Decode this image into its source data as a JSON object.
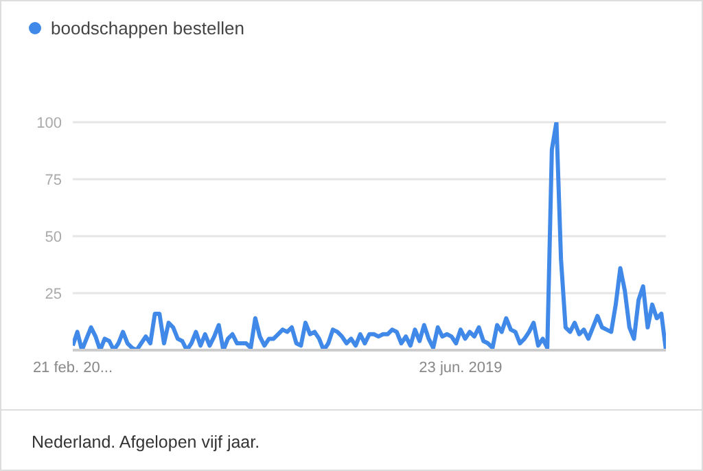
{
  "chart_data": {
    "type": "line",
    "categories": [
      "21 feb. 20...",
      null,
      null,
      null,
      null,
      null,
      null,
      null,
      null,
      null,
      null,
      null,
      null,
      null,
      null,
      null,
      null,
      null,
      null,
      null,
      null,
      null,
      null,
      null,
      null,
      null,
      null,
      null,
      null,
      null,
      null,
      null,
      null,
      null,
      null,
      null,
      null,
      null,
      null,
      null,
      null,
      null,
      null,
      null,
      null,
      null,
      null,
      null,
      null,
      null,
      null,
      null,
      null,
      null,
      null,
      null,
      null,
      null,
      null,
      null,
      null,
      null,
      null,
      null,
      null,
      null,
      null,
      null,
      null,
      null,
      null,
      null,
      null,
      null,
      null,
      null,
      null,
      null,
      null,
      null,
      null,
      null,
      null,
      null,
      null,
      "23 jun. 2019",
      null,
      null,
      null,
      null,
      null,
      null,
      null,
      null,
      null,
      null,
      null,
      null,
      null,
      null,
      null,
      null,
      null,
      null,
      null,
      null,
      null,
      null,
      null,
      null,
      null,
      null,
      null,
      null,
      null,
      null,
      null,
      null,
      null,
      null,
      null,
      null,
      null,
      null,
      null,
      null,
      null,
      null,
      null,
      null,
      null
    ],
    "series": [
      {
        "name": "boodschappen bestellen",
        "color": "#4089e8",
        "values": [
          2,
          8,
          0,
          5,
          10,
          6,
          0,
          5,
          4,
          0,
          3,
          8,
          3,
          1,
          0,
          3,
          6,
          3,
          16,
          16,
          3,
          12,
          10,
          5,
          4,
          0,
          3,
          8,
          2,
          7,
          2,
          6,
          11,
          0,
          5,
          7,
          3,
          3,
          3,
          1,
          14,
          6,
          2,
          5,
          5,
          7,
          9,
          8,
          10,
          3,
          2,
          12,
          7,
          8,
          5,
          0,
          3,
          9,
          8,
          6,
          3,
          5,
          2,
          7,
          3,
          7,
          7,
          6,
          7,
          7,
          9,
          8,
          3,
          6,
          2,
          9,
          4,
          11,
          5,
          1,
          10,
          6,
          7,
          6,
          3,
          9,
          5,
          8,
          6,
          10,
          4,
          3,
          1,
          11,
          8,
          14,
          9,
          8,
          3,
          5,
          8,
          12,
          2,
          5,
          1,
          88,
          100,
          40,
          10,
          8,
          12,
          7,
          9,
          5,
          10,
          15,
          10,
          9,
          8,
          20,
          36,
          26,
          10,
          5,
          22,
          28,
          10,
          20,
          14,
          16,
          0
        ]
      }
    ],
    "ylim": [
      0,
      100
    ],
    "yticks": [
      25,
      50,
      75,
      100
    ],
    "grid": "y",
    "legend": "top left",
    "marker": "none",
    "line_style": "solid",
    "annotations": [
      "Nederland. Afgelopen vijf jaar."
    ]
  }
}
